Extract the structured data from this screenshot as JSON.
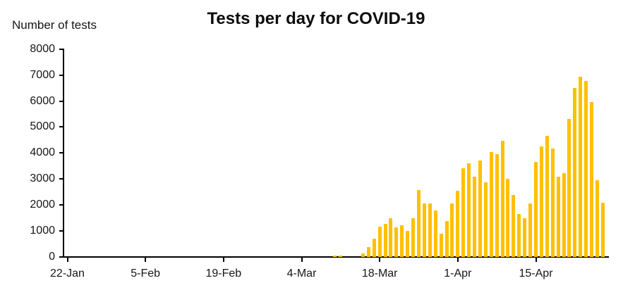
{
  "header": {
    "title": "Tests per day for COVID-19",
    "y_axis_title": "Number of tests"
  },
  "chart_data": {
    "type": "bar",
    "title": "Tests per day for COVID-19",
    "ylabel": "Number of tests",
    "xlabel": "",
    "ylim": [
      0,
      8000
    ],
    "grid": false,
    "legend": "none",
    "bar_color": "#FFC000",
    "axis_color": "#000000",
    "yticks": [
      0,
      1000,
      2000,
      3000,
      4000,
      5000,
      6000,
      7000,
      8000
    ],
    "xticks": [
      {
        "label": "22-Jan",
        "day": 0
      },
      {
        "label": "5-Feb",
        "day": 14
      },
      {
        "label": "19-Feb",
        "day": 28
      },
      {
        "label": "4-Mar",
        "day": 42
      },
      {
        "label": "18-Mar",
        "day": 56
      },
      {
        "label": "1-Apr",
        "day": 70
      },
      {
        "label": "15-Apr",
        "day": 84
      }
    ],
    "series_start_day": 48,
    "x": [
      "10-Mar",
      "11-Mar",
      "12-Mar",
      "13-Mar",
      "14-Mar",
      "15-Mar",
      "16-Mar",
      "17-Mar",
      "18-Mar",
      "19-Mar",
      "20-Mar",
      "21-Mar",
      "22-Mar",
      "23-Mar",
      "24-Mar",
      "25-Mar",
      "26-Mar",
      "27-Mar",
      "28-Mar",
      "29-Mar",
      "30-Mar",
      "31-Mar",
      "1-Apr",
      "2-Apr",
      "3-Apr",
      "4-Apr",
      "5-Apr",
      "6-Apr",
      "7-Apr",
      "8-Apr",
      "9-Apr",
      "10-Apr",
      "11-Apr",
      "12-Apr",
      "13-Apr",
      "14-Apr",
      "15-Apr",
      "16-Apr",
      "17-Apr",
      "18-Apr",
      "19-Apr",
      "20-Apr",
      "21-Apr",
      "22-Apr",
      "23-Apr",
      "24-Apr",
      "25-Apr",
      "26-Apr",
      "27-Apr"
    ],
    "values": [
      50,
      50,
      0,
      0,
      0,
      140,
      380,
      700,
      1170,
      1260,
      1500,
      1140,
      1220,
      1010,
      1500,
      2570,
      2070,
      2070,
      1800,
      900,
      1370,
      2050,
      2540,
      3400,
      3600,
      3080,
      3700,
      2880,
      4030,
      3950,
      4480,
      3020,
      2390,
      1640,
      1500,
      2070,
      3650,
      4250,
      4670,
      4160,
      3090,
      3220,
      5300,
      6490,
      6940,
      6780,
      5960,
      2950,
      2090
    ]
  }
}
